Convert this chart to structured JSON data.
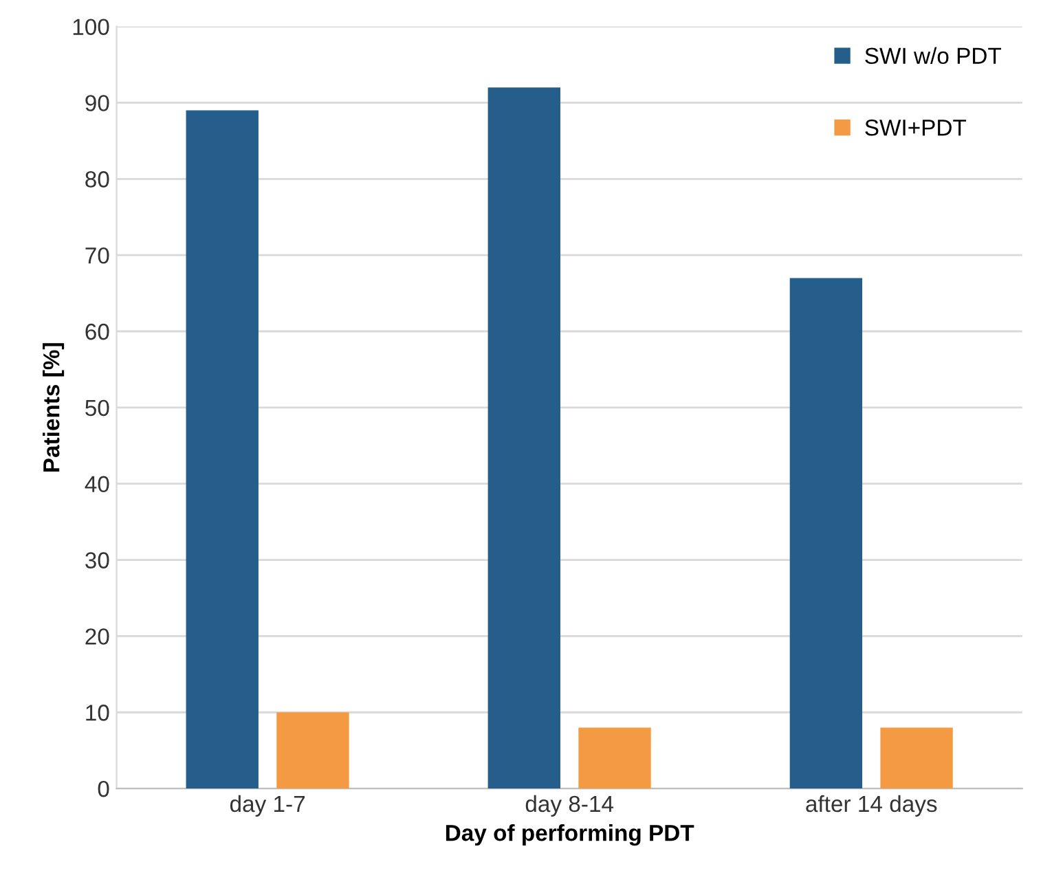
{
  "chart_data": {
    "type": "bar",
    "xlabel": "Day of performing PDT",
    "ylabel": "Patients [%]",
    "categories": [
      "day 1-7",
      "day 8-14",
      "after 14 days"
    ],
    "series": [
      {
        "name": "SWI w/o PDT",
        "color": "#255e8a",
        "values": [
          89,
          92,
          67
        ]
      },
      {
        "name": "SWI+PDT",
        "color": "#f39a43",
        "values": [
          10,
          8,
          8
        ]
      }
    ],
    "ylim": [
      0,
      100
    ],
    "yticks": [
      0,
      10,
      20,
      30,
      40,
      50,
      60,
      70,
      80,
      90,
      100
    ],
    "grid": "y",
    "legend": "top right"
  }
}
